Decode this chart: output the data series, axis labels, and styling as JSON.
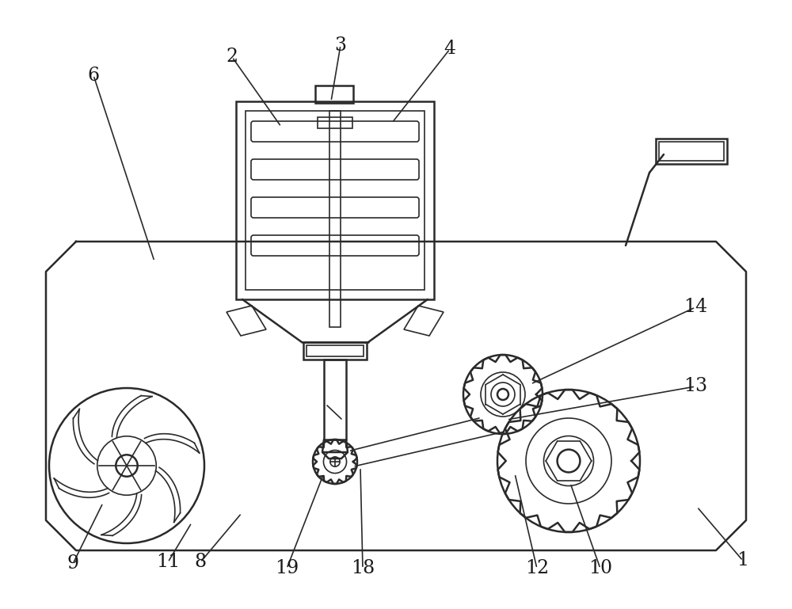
{
  "bg_color": "#ffffff",
  "lc": "#2a2a2a",
  "lw": 1.8,
  "tlw": 1.2,
  "annotations": [
    [
      "6",
      118,
      95,
      195,
      330
    ],
    [
      "2",
      293,
      72,
      355,
      160
    ],
    [
      "3",
      430,
      57,
      418,
      128
    ],
    [
      "4",
      568,
      62,
      495,
      155
    ],
    [
      "14",
      878,
      388,
      670,
      485
    ],
    [
      "13",
      878,
      488,
      640,
      530
    ],
    [
      "9",
      92,
      712,
      130,
      635
    ],
    [
      "11",
      212,
      710,
      242,
      660
    ],
    [
      "8",
      253,
      710,
      305,
      648
    ],
    [
      "19",
      362,
      718,
      408,
      600
    ],
    [
      "18",
      458,
      718,
      455,
      590
    ],
    [
      "12",
      678,
      718,
      650,
      598
    ],
    [
      "10",
      758,
      718,
      720,
      610
    ],
    [
      "1",
      938,
      708,
      880,
      640
    ]
  ]
}
